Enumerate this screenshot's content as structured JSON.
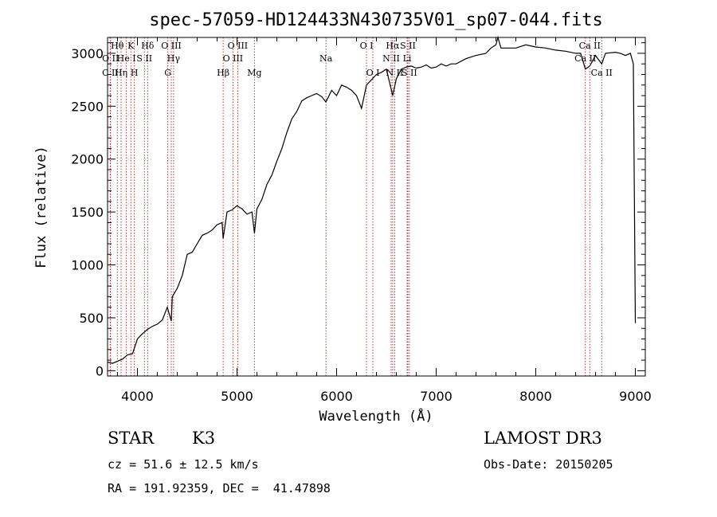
{
  "chart_data": {
    "type": "line",
    "title": "spec-57059-HD124433N430735V01_sp07-044.fits",
    "xlabel": "Wavelength (Å)",
    "ylabel": "Flux (relative)",
    "xlim": [
      3700,
      9100
    ],
    "ylim": [
      -50,
      3150
    ],
    "xticks": [
      4000,
      5000,
      6000,
      7000,
      8000,
      9000
    ],
    "yticks": [
      0,
      500,
      1000,
      1500,
      2000,
      2500,
      3000
    ],
    "series": [
      {
        "name": "flux",
        "x": [
          3700,
          3750,
          3800,
          3850,
          3900,
          3950,
          4000,
          4050,
          4100,
          4150,
          4200,
          4250,
          4300,
          4340,
          4350,
          4400,
          4450,
          4500,
          4550,
          4600,
          4650,
          4700,
          4750,
          4800,
          4850,
          4861,
          4900,
          4950,
          5000,
          5050,
          5100,
          5150,
          5175,
          5200,
          5250,
          5300,
          5350,
          5400,
          5450,
          5500,
          5550,
          5600,
          5650,
          5700,
          5750,
          5800,
          5850,
          5893,
          5950,
          6000,
          6050,
          6100,
          6150,
          6200,
          6250,
          6300,
          6350,
          6400,
          6450,
          6500,
          6563,
          6600,
          6650,
          6700,
          6750,
          6800,
          6850,
          6900,
          6950,
          7000,
          7050,
          7100,
          7150,
          7200,
          7300,
          7400,
          7500,
          7550,
          7600,
          7620,
          7650,
          7700,
          7800,
          7900,
          8000,
          8100,
          8200,
          8300,
          8400,
          8450,
          8498,
          8542,
          8600,
          8662,
          8700,
          8800,
          8850,
          8900,
          8950,
          8980,
          9000
        ],
        "values": [
          80,
          70,
          90,
          110,
          150,
          160,
          300,
          350,
          390,
          420,
          440,
          480,
          600,
          470,
          700,
          780,
          900,
          1100,
          1120,
          1200,
          1280,
          1300,
          1330,
          1380,
          1400,
          1250,
          1500,
          1520,
          1560,
          1530,
          1480,
          1500,
          1300,
          1530,
          1620,
          1760,
          1850,
          1980,
          2100,
          2250,
          2380,
          2450,
          2550,
          2580,
          2600,
          2620,
          2590,
          2540,
          2650,
          2600,
          2700,
          2680,
          2650,
          2600,
          2480,
          2700,
          2750,
          2800,
          2820,
          2850,
          2600,
          2760,
          2850,
          2870,
          2880,
          2860,
          2870,
          2890,
          2860,
          2870,
          2900,
          2880,
          2900,
          2900,
          2950,
          2980,
          3000,
          3050,
          3080,
          3150,
          3050,
          3050,
          3050,
          3080,
          3060,
          3050,
          3030,
          3020,
          3000,
          3000,
          2850,
          2880,
          2980,
          2900,
          3000,
          3010,
          3000,
          2980,
          3000,
          2900,
          450
        ]
      }
    ],
    "lines": [
      {
        "name": "C II",
        "wl": 3727,
        "row": 3
      },
      {
        "name": "O II",
        "wl": 3730,
        "row": 2
      },
      {
        "name": "Hθ",
        "wl": 3798,
        "row": 1
      },
      {
        "name": "Hη",
        "wl": 3836,
        "row": 3
      },
      {
        "name": "He I",
        "wl": 3889,
        "row": 2
      },
      {
        "name": "K",
        "wl": 3934,
        "row": 1
      },
      {
        "name": "H",
        "wl": 3969,
        "row": 3
      },
      {
        "name": "S II",
        "wl": 4070,
        "row": 2
      },
      {
        "name": "Hδ",
        "wl": 4102,
        "row": 1
      },
      {
        "name": "G",
        "wl": 4305,
        "row": 3
      },
      {
        "name": "O III",
        "wl": 4340,
        "row": 1
      },
      {
        "name": "Hγ",
        "wl": 4363,
        "row": 2
      },
      {
        "name": "Hβ",
        "wl": 4861,
        "row": 3
      },
      {
        "name": "O III",
        "wl": 4959,
        "row": 2
      },
      {
        "name": "O III",
        "wl": 5007,
        "row": 1
      },
      {
        "name": "Mg",
        "wl": 5175,
        "row": 3
      },
      {
        "name": "Na",
        "wl": 5893,
        "row": 2
      },
      {
        "name": "O I",
        "wl": 6300,
        "row": 1
      },
      {
        "name": "O I",
        "wl": 6364,
        "row": 3
      },
      {
        "name": "N II",
        "wl": 6548,
        "row": 2
      },
      {
        "name": "Hα",
        "wl": 6563,
        "row": 1
      },
      {
        "name": "N II",
        "wl": 6583,
        "row": 3
      },
      {
        "name": "Li",
        "wl": 6708,
        "row": 2
      },
      {
        "name": "S II",
        "wl": 6716,
        "row": 1
      },
      {
        "name": "S II",
        "wl": 6731,
        "row": 3
      },
      {
        "name": "Ca II",
        "wl": 8498,
        "row": 2
      },
      {
        "name": "Ca II",
        "wl": 8542,
        "row": 1
      },
      {
        "name": "Ca II",
        "wl": 8662,
        "row": 3
      }
    ]
  },
  "info": {
    "class_label": "STAR",
    "subclass": "K3",
    "survey": "LAMOST DR3",
    "cz": "cz = 51.6 ± 12.5 km/s",
    "obs_date": "Obs-Date: 20150205",
    "coords": "RA = 191.92359, DEC =  41.47898"
  },
  "colors": {
    "spectrum": "#000000",
    "line_marker": "#b22222",
    "axes": "#000000"
  }
}
